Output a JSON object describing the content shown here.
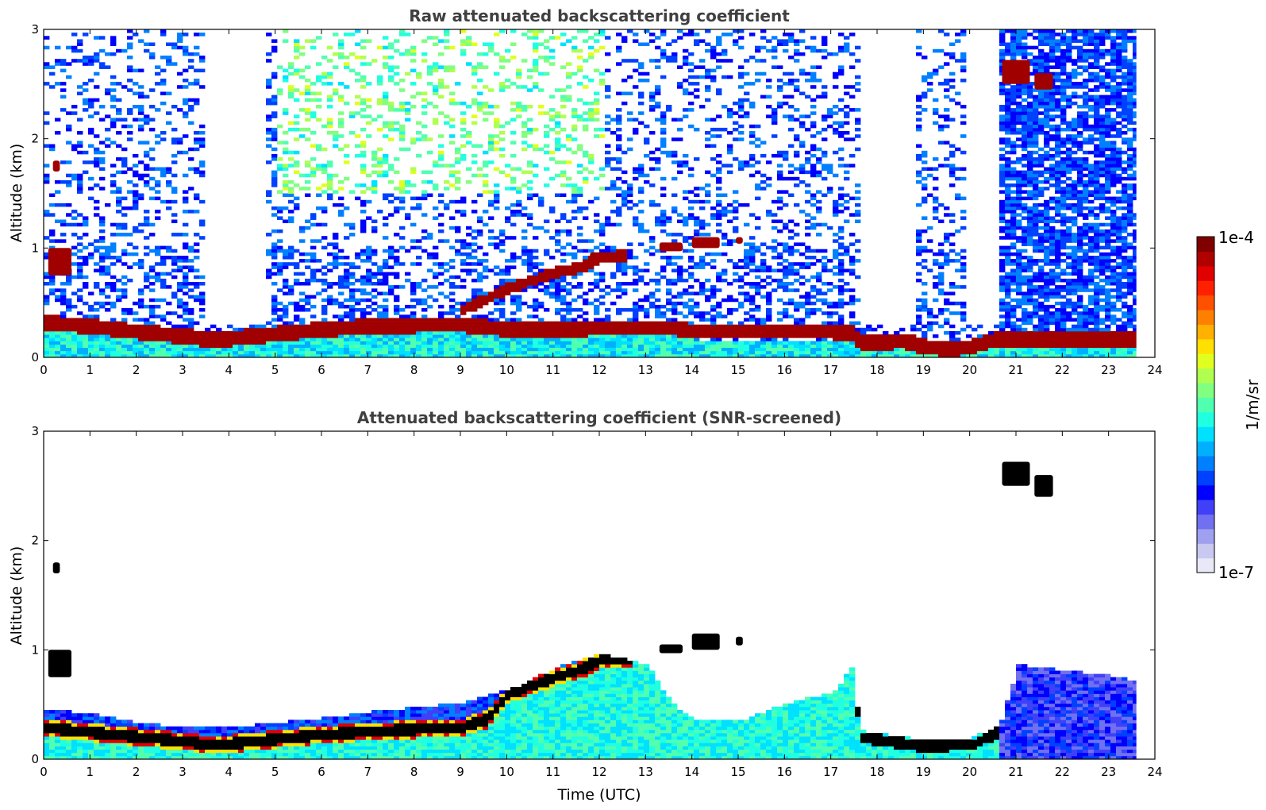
{
  "chart_data": [
    {
      "type": "heatmap",
      "title": "Raw attenuated backscattering coefficient",
      "xlabel": "",
      "ylabel": "Altitude (km)",
      "xlim": [
        0,
        24
      ],
      "ylim": [
        0,
        3
      ],
      "x_ticks": [
        "0",
        "1",
        "2",
        "3",
        "4",
        "5",
        "6",
        "7",
        "8",
        "9",
        "10",
        "11",
        "12",
        "13",
        "14",
        "15",
        "16",
        "17",
        "18",
        "19",
        "20",
        "21",
        "22",
        "23",
        "24"
      ],
      "y_ticks": [
        "0",
        "1",
        "2",
        "3"
      ],
      "data_end_hour": 23.6,
      "boundary_layer_top_km": [
        [
          0,
          0.3
        ],
        [
          1,
          0.27
        ],
        [
          2,
          0.22
        ],
        [
          3,
          0.18
        ],
        [
          3.5,
          0.15
        ],
        [
          4,
          0.16
        ],
        [
          5,
          0.2
        ],
        [
          6,
          0.24
        ],
        [
          7,
          0.27
        ],
        [
          8,
          0.28
        ],
        [
          9,
          0.28
        ],
        [
          10,
          0.24
        ]
      ],
      "rising_layer_km": [
        [
          9,
          0.42
        ],
        [
          9.5,
          0.52
        ],
        [
          10,
          0.62
        ],
        [
          10.5,
          0.69
        ],
        [
          11,
          0.76
        ],
        [
          11.5,
          0.8
        ],
        [
          12,
          0.9
        ],
        [
          12.5,
          0.92
        ]
      ],
      "later_boundary_layer_km": [
        [
          13.5,
          0.26
        ],
        [
          14,
          0.22
        ],
        [
          15,
          0.22
        ],
        [
          16,
          0.22
        ],
        [
          17,
          0.22
        ],
        [
          17.4,
          0.2
        ],
        [
          17.6,
          0.13
        ],
        [
          18,
          0.12
        ],
        [
          18.5,
          0.14
        ],
        [
          19,
          0.08
        ],
        [
          19.5,
          0.06
        ],
        [
          20,
          0.08
        ],
        [
          20.5,
          0.15
        ]
      ],
      "cloud_patches": [
        {
          "x0": 0.2,
          "x1": 0.35,
          "y0": 1.7,
          "y1": 1.8
        },
        {
          "x0": 0.1,
          "x1": 0.6,
          "y0": 0.75,
          "y1": 1.0
        },
        {
          "x0": 11.8,
          "x1": 12.5,
          "y0": 0.88,
          "y1": 0.96
        },
        {
          "x0": 13.3,
          "x1": 13.8,
          "y0": 0.97,
          "y1": 1.05
        },
        {
          "x0": 14.0,
          "x1": 14.6,
          "y0": 1.0,
          "y1": 1.1
        },
        {
          "x0": 14.95,
          "x1": 15.1,
          "y0": 1.04,
          "y1": 1.1
        },
        {
          "x0": 20.7,
          "x1": 21.3,
          "y0": 2.5,
          "y1": 2.72
        },
        {
          "x0": 21.4,
          "x1": 21.8,
          "y0": 2.45,
          "y1": 2.6
        }
      ],
      "clear_gaps_hours": [
        [
          3.4,
          4.7
        ],
        [
          17.6,
          18.8
        ],
        [
          19.8,
          20.6
        ]
      ]
    },
    {
      "type": "heatmap",
      "title": "Attenuated backscattering coefficient (SNR-screened)",
      "xlabel": "Time (UTC)",
      "ylabel": "Altitude (km)",
      "xlim": [
        0,
        24
      ],
      "ylim": [
        0,
        3
      ],
      "x_ticks": [
        "0",
        "1",
        "2",
        "3",
        "4",
        "5",
        "6",
        "7",
        "8",
        "9",
        "10",
        "11",
        "12",
        "13",
        "14",
        "15",
        "16",
        "17",
        "18",
        "19",
        "20",
        "21",
        "22",
        "23",
        "24"
      ],
      "y_ticks": [
        "0",
        "1",
        "2",
        "3"
      ],
      "data_end_hour": 23.6,
      "signal_top_km": [
        [
          0,
          0.45
        ],
        [
          1,
          0.4
        ],
        [
          2,
          0.32
        ],
        [
          3,
          0.28
        ],
        [
          4,
          0.28
        ],
        [
          5,
          0.32
        ],
        [
          6,
          0.36
        ],
        [
          7,
          0.42
        ],
        [
          8,
          0.46
        ],
        [
          9,
          0.5
        ],
        [
          10,
          0.62
        ],
        [
          11,
          0.82
        ],
        [
          12,
          0.95
        ],
        [
          13,
          0.85
        ],
        [
          13.5,
          0.5
        ],
        [
          14,
          0.35
        ],
        [
          15,
          0.33
        ],
        [
          16,
          0.5
        ],
        [
          17,
          0.6
        ],
        [
          17.4,
          0.82
        ],
        [
          17.6,
          0.25
        ],
        [
          18,
          0.22
        ],
        [
          19,
          0.16
        ],
        [
          20,
          0.18
        ],
        [
          20.6,
          0.3
        ],
        [
          21,
          0.85
        ],
        [
          22,
          0.8
        ],
        [
          23,
          0.75
        ],
        [
          23.6,
          0.7
        ]
      ],
      "saturated_layer_km": [
        [
          0,
          0.27
        ],
        [
          1,
          0.23
        ],
        [
          2,
          0.19
        ],
        [
          3,
          0.15
        ],
        [
          3.5,
          0.12
        ],
        [
          4,
          0.13
        ],
        [
          5,
          0.17
        ],
        [
          6,
          0.21
        ],
        [
          7,
          0.24
        ],
        [
          8,
          0.26
        ],
        [
          9,
          0.28
        ],
        [
          9.5,
          0.35
        ],
        [
          10,
          0.58
        ],
        [
          10.5,
          0.66
        ],
        [
          11,
          0.74
        ],
        [
          11.5,
          0.8
        ],
        [
          12,
          0.9
        ],
        [
          12.5,
          0.92
        ]
      ],
      "cloud_patches": [
        {
          "x0": 0.2,
          "x1": 0.35,
          "y0": 1.7,
          "y1": 1.8
        },
        {
          "x0": 0.1,
          "x1": 0.6,
          "y0": 0.75,
          "y1": 1.0
        },
        {
          "x0": 13.3,
          "x1": 13.8,
          "y0": 0.97,
          "y1": 1.05
        },
        {
          "x0": 14.0,
          "x1": 14.6,
          "y0": 1.0,
          "y1": 1.15
        },
        {
          "x0": 14.95,
          "x1": 15.1,
          "y0": 1.04,
          "y1": 1.12
        },
        {
          "x0": 20.7,
          "x1": 21.3,
          "y0": 2.5,
          "y1": 2.72
        },
        {
          "x0": 21.4,
          "x1": 21.8,
          "y0": 2.4,
          "y1": 2.6
        }
      ]
    }
  ],
  "colorbar": {
    "label": "1/m/sr",
    "max_label": "1e-4",
    "min_label": "1e-7",
    "colors": [
      "#e8e8f8",
      "#c8c8f0",
      "#a0a0f0",
      "#7070f0",
      "#4040f8",
      "#0000ff",
      "#0040ff",
      "#0080ff",
      "#00b0ff",
      "#00e0ff",
      "#20ffe0",
      "#50ffb0",
      "#80ff80",
      "#b0ff50",
      "#e0ff20",
      "#ffe000",
      "#ffb000",
      "#ff8000",
      "#ff5000",
      "#ff2000",
      "#e00000",
      "#b00000",
      "#800000"
    ]
  }
}
